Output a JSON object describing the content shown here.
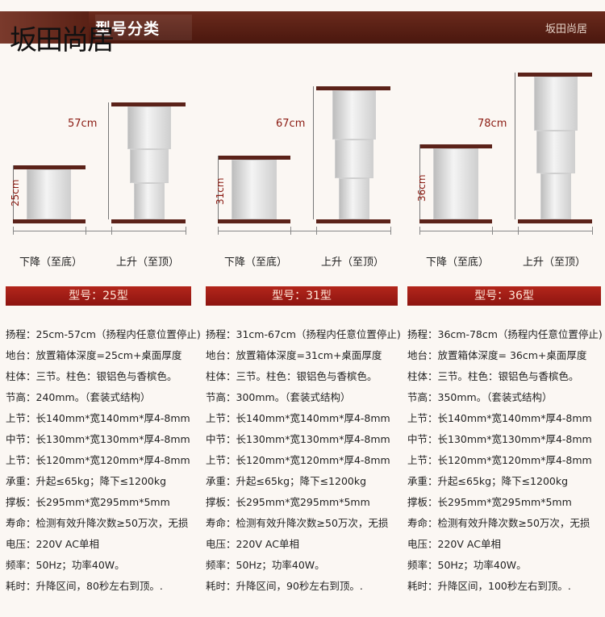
{
  "header": {
    "title": "型号分类",
    "brand": "坂田尚居"
  },
  "watermark": "坂田尚居",
  "products": [
    {
      "low_height": "25cm",
      "high_height": "57cm",
      "down_caption": "下降（至底）",
      "up_caption": "上升（至顶）",
      "model": "型号：25型",
      "specs": [
        {
          "k": "扬程：",
          "v": "25cm-57cm（扬程内任意位置停止)"
        },
        {
          "k": "地台：",
          "v": "放置箱体深度=25cm+桌面厚度"
        },
        {
          "k": "柱体：",
          "v": "三节。柱色：银铝色与香槟色。"
        },
        {
          "k": "节高：",
          "v": "240mm。（套装式结构）"
        },
        {
          "k": "上节：",
          "v": "长140mm*宽140mm*厚4-8mm"
        },
        {
          "k": "中节：",
          "v": "长130mm*宽130mm*厚4-8mm"
        },
        {
          "k": "上节：",
          "v": "长120mm*宽120mm*厚4-8mm"
        },
        {
          "k": "承重：",
          "v": "升起≤65kg；降下≤1200kg"
        },
        {
          "k": "撑板：",
          "v": "长295mm*宽295mm*5mm"
        },
        {
          "k": "寿命：",
          "v": "检测有效升降次数≥50万次，无损"
        },
        {
          "k": "电压：",
          "v": "220V AC单相"
        },
        {
          "k": "频率：",
          "v": "50Hz；功率40W。"
        },
        {
          "k": "耗时：",
          "v": "升降区间，80秒左右到顶。."
        }
      ]
    },
    {
      "low_height": "31cm",
      "high_height": "67cm",
      "down_caption": "下降（至底）",
      "up_caption": "上升（至顶）",
      "model": "型号：31型",
      "specs": [
        {
          "k": "扬程：",
          "v": "31cm-67cm（扬程内任意位置停止)"
        },
        {
          "k": "地台：",
          "v": "放置箱体深度=31cm+桌面厚度"
        },
        {
          "k": "柱体：",
          "v": "三节。柱色：银铝色与香槟色。"
        },
        {
          "k": "节高：",
          "v": "300mm。（套装式结构）"
        },
        {
          "k": "上节：",
          "v": "长140mm*宽140mm*厚4-8mm"
        },
        {
          "k": "中节：",
          "v": "长130mm*宽130mm*厚4-8mm"
        },
        {
          "k": "上节：",
          "v": "长120mm*宽120mm*厚4-8mm"
        },
        {
          "k": "承重：",
          "v": "升起≤65kg；降下≤1200kg"
        },
        {
          "k": "撑板：",
          "v": "长295mm*宽295mm*5mm"
        },
        {
          "k": "寿命：",
          "v": "检测有效升降次数≥50万次，无损"
        },
        {
          "k": "电压：",
          "v": "220V AC单相"
        },
        {
          "k": "频率：",
          "v": "50Hz；功率40W。"
        },
        {
          "k": "耗时：",
          "v": "升降区间，90秒左右到顶。."
        }
      ]
    },
    {
      "low_height": "36cm",
      "high_height": "78cm",
      "down_caption": "下降（至底）",
      "up_caption": "上升（至顶）",
      "model": "型号：36型",
      "specs": [
        {
          "k": "扬程：",
          "v": "36cm-78cm（扬程内任意位置停止)"
        },
        {
          "k": "地台：",
          "v": "放置箱体深度= 36cm+桌面厚度"
        },
        {
          "k": "柱体：",
          "v": "三节。柱色：银铝色与香槟色。"
        },
        {
          "k": "节高：",
          "v": "350mm。（套装式结构）"
        },
        {
          "k": "上节：",
          "v": "长140mm*宽140mm*厚4-8mm"
        },
        {
          "k": "中节：",
          "v": "长130mm*宽130mm*厚4-8mm"
        },
        {
          "k": "上节：",
          "v": "长120mm*宽120mm*厚4-8mm"
        },
        {
          "k": "承重：",
          "v": "升起≤65kg；降下≤1200kg"
        },
        {
          "k": "撑板：",
          "v": "长295mm*宽295mm*5mm"
        },
        {
          "k": "寿命：",
          "v": "检测有效升降次数≥50万次，无损"
        },
        {
          "k": "电压：",
          "v": "220V AC单相"
        },
        {
          "k": "频率：",
          "v": "50Hz；功率40W。"
        },
        {
          "k": "耗时：",
          "v": "升降区间，100秒左右到顶。."
        }
      ]
    }
  ],
  "colors": {
    "header": "#5a2115",
    "accent": "#8d1410",
    "plate": "#5b2219",
    "dim_text": "#8b1b12"
  }
}
